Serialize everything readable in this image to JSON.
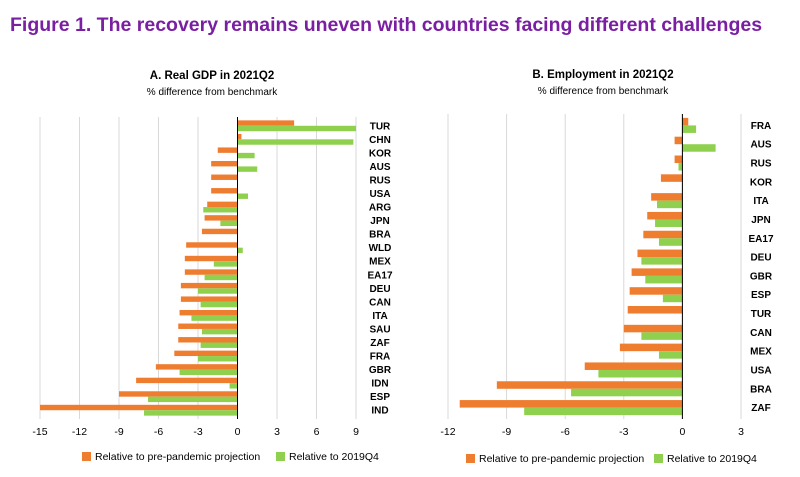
{
  "figure_title": "Figure 1. The recovery remains uneven with countries facing different challenges",
  "colors": {
    "pre_pandemic": "#ef7d30",
    "q4_2019": "#8fd14f",
    "title": "#7a1fa2",
    "grid": "#d9d9d9",
    "axis": "#000000"
  },
  "legend": {
    "pre_pandemic": "Relative to pre-pandemic projection",
    "q4_2019": "Relative to 2019Q4"
  },
  "chart_data": [
    {
      "type": "bar",
      "orientation": "horizontal",
      "title": "A. Real GDP in 2021Q2",
      "subtitle": "% difference from benchmark",
      "xlim": [
        -15,
        9
      ],
      "xticks": [
        -15,
        -12,
        -9,
        -6,
        -3,
        0,
        3,
        6,
        9
      ],
      "categories": [
        "TUR",
        "CHN",
        "KOR",
        "AUS",
        "RUS",
        "USA",
        "ARG",
        "JPN",
        "BRA",
        "WLD",
        "MEX",
        "EA17",
        "DEU",
        "CAN",
        "ITA",
        "SAU",
        "ZAF",
        "FRA",
        "GBR",
        "IDN",
        "ESP",
        "IND"
      ],
      "series": [
        {
          "name": "Relative to pre-pandemic projection",
          "values": [
            4.3,
            0.3,
            -1.5,
            -2.0,
            -2.0,
            -2.0,
            -2.3,
            -2.5,
            -2.7,
            -3.9,
            -4.0,
            -4.0,
            -4.3,
            -4.3,
            -4.4,
            -4.5,
            -4.5,
            -4.8,
            -6.2,
            -7.7,
            -9.0,
            -15.0
          ]
        },
        {
          "name": "Relative to 2019Q4",
          "values": [
            9.0,
            8.8,
            1.3,
            1.5,
            0.0,
            0.8,
            -2.6,
            -1.3,
            0.0,
            0.4,
            -1.8,
            -2.5,
            -3.0,
            -2.8,
            -3.5,
            -2.7,
            -2.8,
            -3.0,
            -4.4,
            -0.6,
            -6.8,
            -7.1
          ]
        }
      ]
    },
    {
      "type": "bar",
      "orientation": "horizontal",
      "title": "B. Employment in 2021Q2",
      "subtitle": "% difference from benchmark",
      "xlim": [
        -12,
        3
      ],
      "xticks": [
        -12,
        -9,
        -6,
        -3,
        0,
        3
      ],
      "categories": [
        "FRA",
        "AUS",
        "RUS",
        "KOR",
        "ITA",
        "JPN",
        "EA17",
        "DEU",
        "GBR",
        "ESP",
        "TUR",
        "CAN",
        "MEX",
        "USA",
        "BRA",
        "ZAF"
      ],
      "series": [
        {
          "name": "Relative to pre-pandemic projection",
          "values": [
            0.3,
            -0.4,
            -0.4,
            -1.1,
            -1.6,
            -1.8,
            -2.0,
            -2.3,
            -2.6,
            -2.7,
            -2.8,
            -3.0,
            -3.2,
            -5.0,
            -9.5,
            -11.4
          ]
        },
        {
          "name": "Relative to 2019Q4",
          "values": [
            0.7,
            1.7,
            -0.2,
            0.0,
            -1.3,
            -1.4,
            -1.2,
            -2.1,
            -1.9,
            -1.0,
            0.0,
            -2.1,
            -1.2,
            -4.3,
            -5.7,
            -8.1
          ]
        }
      ]
    }
  ]
}
